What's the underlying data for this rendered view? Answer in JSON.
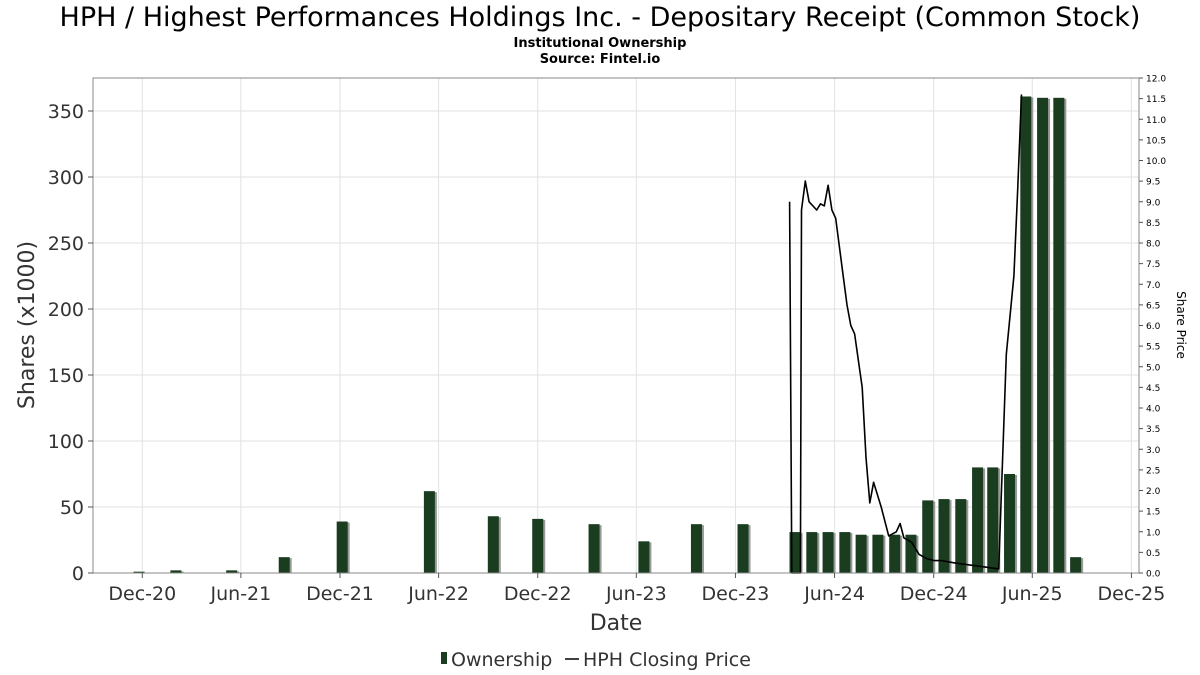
{
  "chart_data": {
    "type": "bar",
    "title": "HPH / Highest Performances Holdings Inc. - Depositary Receipt (Common Stock)",
    "subtitle_1": "Institutional Ownership",
    "subtitle_2": "Source: Fintel.io",
    "xlabel": "Date",
    "ylabel": "Shares (x1000)",
    "y2label": "Share Price",
    "ylim": [
      0,
      375
    ],
    "y2lim": [
      0,
      12.0
    ],
    "xlim": [
      "2020-09-01",
      "2025-12-15"
    ],
    "grid": true,
    "legend_position": "bottom-center",
    "x_ticks": [
      {
        "label": "Dec-20",
        "date": "2020-12-01"
      },
      {
        "label": "Jun-21",
        "date": "2021-06-01"
      },
      {
        "label": "Dec-21",
        "date": "2021-12-01"
      },
      {
        "label": "Jun-22",
        "date": "2022-06-01"
      },
      {
        "label": "Dec-22",
        "date": "2022-12-01"
      },
      {
        "label": "Jun-23",
        "date": "2023-06-01"
      },
      {
        "label": "Dec-23",
        "date": "2023-12-01"
      },
      {
        "label": "Jun-24",
        "date": "2024-06-01"
      },
      {
        "label": "Dec-24",
        "date": "2024-12-01"
      },
      {
        "label": "Jun-25",
        "date": "2025-06-01"
      },
      {
        "label": "Dec-25",
        "date": "2025-12-01"
      }
    ],
    "y_ticks": [
      {
        "label": "0",
        "value": 0
      },
      {
        "label": "50",
        "value": 50
      },
      {
        "label": "100",
        "value": 100
      },
      {
        "label": "150",
        "value": 150
      },
      {
        "label": "200",
        "value": 200
      },
      {
        "label": "250",
        "value": 250
      },
      {
        "label": "300",
        "value": 300
      },
      {
        "label": "350",
        "value": 350
      }
    ],
    "y2_ticks": [
      {
        "label": "0.0",
        "value": 0.0
      },
      {
        "label": "0.5",
        "value": 0.5
      },
      {
        "label": "1.0",
        "value": 1.0
      },
      {
        "label": "1.5",
        "value": 1.5
      },
      {
        "label": "2.0",
        "value": 2.0
      },
      {
        "label": "2.5",
        "value": 2.5
      },
      {
        "label": "3.0",
        "value": 3.0
      },
      {
        "label": "3.5",
        "value": 3.5
      },
      {
        "label": "4.0",
        "value": 4.0
      },
      {
        "label": "4.5",
        "value": 4.5
      },
      {
        "label": "5.0",
        "value": 5.0
      },
      {
        "label": "5.5",
        "value": 5.5
      },
      {
        "label": "6.0",
        "value": 6.0
      },
      {
        "label": "6.5",
        "value": 6.5
      },
      {
        "label": "7.0",
        "value": 7.0
      },
      {
        "label": "7.5",
        "value": 7.5
      },
      {
        "label": "8.0",
        "value": 8.0
      },
      {
        "label": "8.5",
        "value": 8.5
      },
      {
        "label": "9.0",
        "value": 9.0
      },
      {
        "label": "9.5",
        "value": 9.5
      },
      {
        "label": "10.0",
        "value": 10.0
      },
      {
        "label": "10.5",
        "value": 10.5
      },
      {
        "label": "11.0",
        "value": 11.0
      },
      {
        "label": "11.5",
        "value": 11.5
      },
      {
        "label": "12.0",
        "value": 12.0
      }
    ],
    "series": [
      {
        "name": "Ownership",
        "type": "bar",
        "color": "#1a3d20",
        "points": [
          {
            "date": "2020-11-25",
            "value": 1
          },
          {
            "date": "2021-02-01",
            "value": 2
          },
          {
            "date": "2021-05-15",
            "value": 2
          },
          {
            "date": "2021-08-20",
            "value": 12
          },
          {
            "date": "2021-12-05",
            "value": 39
          },
          {
            "date": "2022-05-15",
            "value": 62
          },
          {
            "date": "2022-09-10",
            "value": 43
          },
          {
            "date": "2022-12-01",
            "value": 41
          },
          {
            "date": "2023-03-15",
            "value": 37
          },
          {
            "date": "2023-06-15",
            "value": 24
          },
          {
            "date": "2023-09-20",
            "value": 37
          },
          {
            "date": "2023-12-15",
            "value": 37
          },
          {
            "date": "2024-03-20",
            "value": 31
          },
          {
            "date": "2024-04-20",
            "value": 31
          },
          {
            "date": "2024-05-20",
            "value": 31
          },
          {
            "date": "2024-06-20",
            "value": 31
          },
          {
            "date": "2024-07-20",
            "value": 29
          },
          {
            "date": "2024-08-20",
            "value": 29
          },
          {
            "date": "2024-09-20",
            "value": 29
          },
          {
            "date": "2024-10-20",
            "value": 29
          },
          {
            "date": "2024-11-20",
            "value": 55
          },
          {
            "date": "2024-12-20",
            "value": 56
          },
          {
            "date": "2025-01-20",
            "value": 56
          },
          {
            "date": "2025-02-20",
            "value": 80
          },
          {
            "date": "2025-03-20",
            "value": 80
          },
          {
            "date": "2025-04-20",
            "value": 75
          },
          {
            "date": "2025-05-20",
            "value": 361
          },
          {
            "date": "2025-06-20",
            "value": 360
          },
          {
            "date": "2025-07-20",
            "value": 360
          },
          {
            "date": "2025-08-20",
            "value": 12
          }
        ]
      },
      {
        "name": "HPH Closing Price",
        "type": "line",
        "axis": "right",
        "color": "#000000",
        "points": [
          {
            "date": "2024-03-10",
            "value": 9.0
          },
          {
            "date": "2024-03-14",
            "value": 0.0
          },
          {
            "date": "2024-03-30",
            "value": 0.0
          },
          {
            "date": "2024-04-01",
            "value": 8.8
          },
          {
            "date": "2024-04-08",
            "value": 9.5
          },
          {
            "date": "2024-04-15",
            "value": 9.0
          },
          {
            "date": "2024-04-29",
            "value": 8.8
          },
          {
            "date": "2024-05-06",
            "value": 8.95
          },
          {
            "date": "2024-05-13",
            "value": 8.9
          },
          {
            "date": "2024-05-20",
            "value": 9.4
          },
          {
            "date": "2024-05-27",
            "value": 8.8
          },
          {
            "date": "2024-06-03",
            "value": 8.6
          },
          {
            "date": "2024-06-17",
            "value": 7.2
          },
          {
            "date": "2024-06-24",
            "value": 6.5
          },
          {
            "date": "2024-07-01",
            "value": 6.0
          },
          {
            "date": "2024-07-08",
            "value": 5.8
          },
          {
            "date": "2024-07-22",
            "value": 4.5
          },
          {
            "date": "2024-07-29",
            "value": 2.8
          },
          {
            "date": "2024-08-05",
            "value": 1.7
          },
          {
            "date": "2024-08-12",
            "value": 2.2
          },
          {
            "date": "2024-08-26",
            "value": 1.6
          },
          {
            "date": "2024-09-09",
            "value": 0.9
          },
          {
            "date": "2024-09-23",
            "value": 1.0
          },
          {
            "date": "2024-09-30",
            "value": 1.2
          },
          {
            "date": "2024-10-07",
            "value": 0.85
          },
          {
            "date": "2024-10-21",
            "value": 0.75
          },
          {
            "date": "2024-11-04",
            "value": 0.45
          },
          {
            "date": "2024-11-18",
            "value": 0.35
          },
          {
            "date": "2024-12-02",
            "value": 0.3
          },
          {
            "date": "2024-12-16",
            "value": 0.3
          },
          {
            "date": "2025-01-06",
            "value": 0.25
          },
          {
            "date": "2025-02-03",
            "value": 0.2
          },
          {
            "date": "2025-03-03",
            "value": 0.15
          },
          {
            "date": "2025-03-31",
            "value": 0.1
          },
          {
            "date": "2025-04-14",
            "value": 5.3
          },
          {
            "date": "2025-04-28",
            "value": 7.2
          },
          {
            "date": "2025-05-05",
            "value": 9.3
          },
          {
            "date": "2025-05-12",
            "value": 11.6
          }
        ]
      }
    ]
  }
}
